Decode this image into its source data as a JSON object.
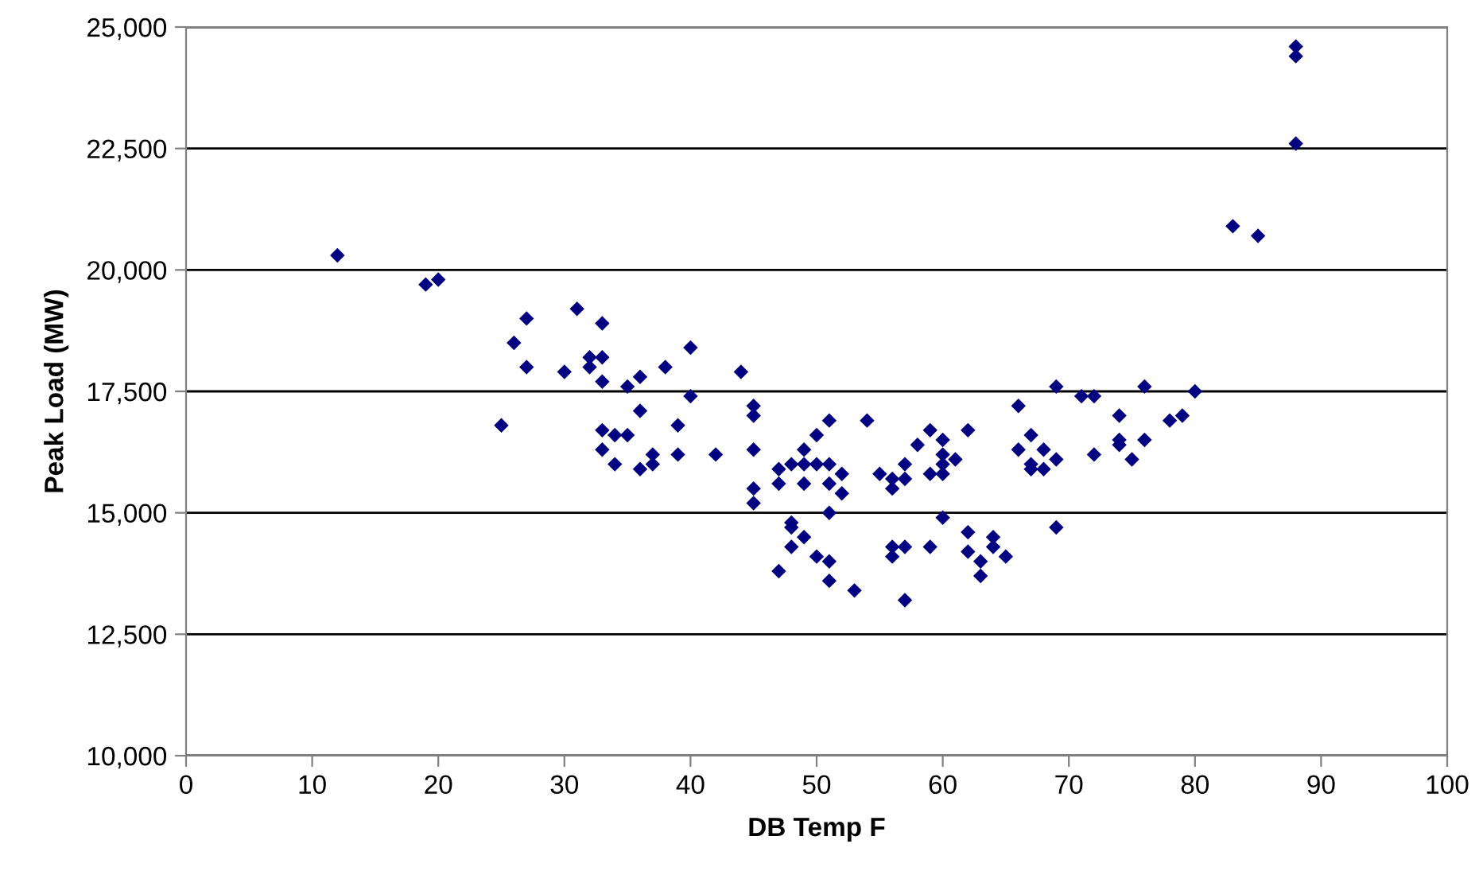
{
  "chart_data": {
    "type": "scatter",
    "xlabel": "DB Temp F",
    "ylabel": "Peak Load (MW)",
    "x": [
      12,
      19,
      20,
      25,
      26,
      27,
      27,
      30,
      31,
      32,
      32,
      33,
      33,
      33,
      33,
      33,
      34,
      34,
      35,
      35,
      36,
      36,
      36,
      37,
      37,
      38,
      39,
      39,
      40,
      40,
      42,
      44,
      45,
      45,
      45,
      45,
      45,
      47,
      47,
      47,
      48,
      48,
      48,
      48,
      49,
      49,
      49,
      49,
      50,
      50,
      50,
      51,
      51,
      51,
      51,
      51,
      51,
      52,
      52,
      53,
      54,
      55,
      56,
      56,
      56,
      56,
      57,
      57,
      57,
      57,
      58,
      59,
      59,
      59,
      60,
      60,
      60,
      60,
      60,
      61,
      62,
      62,
      62,
      63,
      63,
      64,
      64,
      65,
      66,
      66,
      67,
      67,
      67,
      68,
      68,
      69,
      69,
      69,
      71,
      72,
      72,
      74,
      74,
      74,
      75,
      76,
      76,
      78,
      79,
      80,
      83,
      85,
      88,
      88,
      88
    ],
    "values": [
      20300,
      19700,
      19800,
      16800,
      18500,
      19000,
      18000,
      17900,
      19200,
      18000,
      18200,
      18900,
      18200,
      17700,
      16700,
      16300,
      16600,
      16000,
      16600,
      17600,
      17800,
      17100,
      15900,
      16200,
      16000,
      18000,
      16800,
      16200,
      18400,
      17400,
      16200,
      17900,
      17200,
      17000,
      16300,
      15500,
      15200,
      15900,
      15600,
      13800,
      16000,
      14800,
      14700,
      14300,
      16300,
      16000,
      15600,
      14500,
      16000,
      16600,
      14100,
      16900,
      15600,
      16000,
      15000,
      14000,
      13600,
      15800,
      15400,
      13400,
      16900,
      15800,
      15700,
      15500,
      14300,
      14100,
      15700,
      16000,
      14300,
      13200,
      16400,
      16700,
      15800,
      14300,
      16500,
      16200,
      16000,
      15800,
      14900,
      16100,
      16700,
      14600,
      14200,
      14000,
      13700,
      14500,
      14300,
      14100,
      17200,
      16300,
      16600,
      16000,
      15900,
      16300,
      15900,
      17600,
      16100,
      14700,
      17400,
      17400,
      16200,
      17000,
      16500,
      16400,
      16100,
      17600,
      16500,
      16900,
      17000,
      17500,
      20900,
      20700,
      24600,
      24400,
      22600
    ],
    "color": "#000080",
    "marker": "diamond",
    "grid": "y",
    "xlim": [
      0,
      100
    ],
    "xticks": [
      0,
      10,
      20,
      30,
      40,
      50,
      60,
      70,
      80,
      90,
      100
    ],
    "ylim": [
      10000,
      25000
    ],
    "yticks": [
      {
        "value": 10000,
        "label": "10,000"
      },
      {
        "value": 12500,
        "label": "12,500"
      },
      {
        "value": 15000,
        "label": "15,000"
      },
      {
        "value": 17500,
        "label": "17,500"
      },
      {
        "value": 20000,
        "label": "20,000"
      },
      {
        "value": 22500,
        "label": "22,500"
      },
      {
        "value": 25000,
        "label": "25,000"
      }
    ]
  }
}
